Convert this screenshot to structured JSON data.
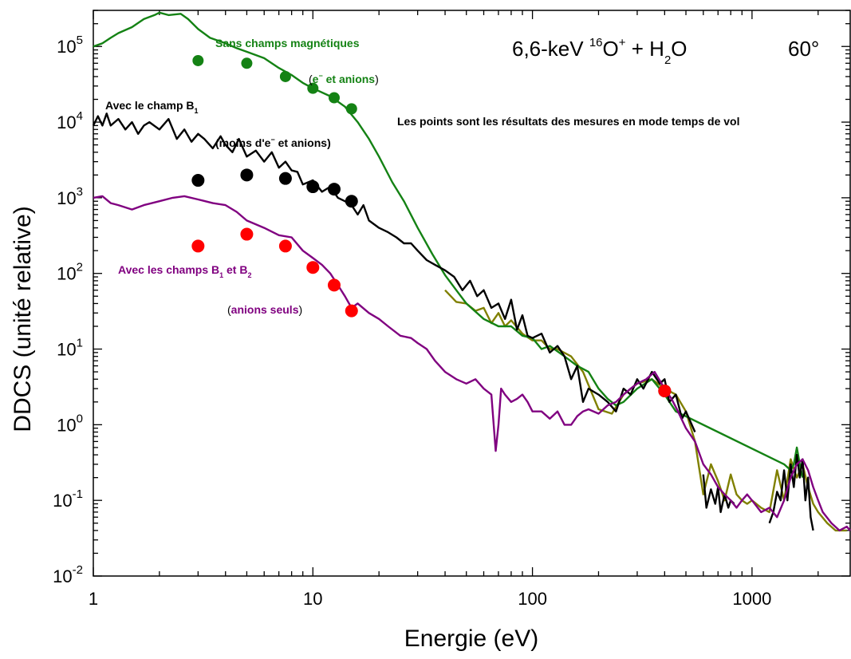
{
  "chart_data": {
    "type": "line",
    "xlabel": "Energie (eV)",
    "ylabel": "DDCS (unité relative)",
    "xscale": "log",
    "yscale": "log",
    "xlim": [
      1,
      2800
    ],
    "ylim": [
      0.01,
      300000
    ],
    "x_ticks": [
      {
        "value": 1,
        "label": "1"
      },
      {
        "value": 10,
        "label": "10"
      },
      {
        "value": 100,
        "label": "100"
      },
      {
        "value": 1000,
        "label": "1000"
      }
    ],
    "y_ticks": [
      {
        "value": 0.01,
        "base": "10",
        "exp": "-2"
      },
      {
        "value": 0.1,
        "base": "10",
        "exp": "-1"
      },
      {
        "value": 1,
        "base": "10",
        "exp": "0"
      },
      {
        "value": 10,
        "base": "10",
        "exp": "1"
      },
      {
        "value": 100,
        "base": "10",
        "exp": "2"
      },
      {
        "value": 1000,
        "base": "10",
        "exp": "3"
      },
      {
        "value": 10000,
        "base": "10",
        "exp": "4"
      },
      {
        "value": 100000,
        "base": "10",
        "exp": "5"
      }
    ],
    "title": {
      "projectile": "6,6-keV ",
      "mass": "16",
      "ion": "O",
      "charge": "+",
      "target_a": " + H",
      "target_sub": "2",
      "target_b": "O",
      "angle": "60°"
    },
    "series": [
      {
        "color": "#808000",
        "x": [
          40,
          45,
          50,
          55,
          60,
          65,
          70,
          75,
          80,
          90,
          100,
          110,
          120,
          130,
          150,
          170,
          200,
          230,
          260,
          300,
          350,
          400,
          450,
          500,
          550,
          600,
          650,
          700,
          750,
          800,
          850,
          900,
          950,
          1000,
          1100,
          1200,
          1300,
          1400,
          1500,
          1600,
          1700,
          1800,
          1900,
          2000,
          2200,
          2400,
          2700
        ],
        "y": [
          60,
          42,
          40,
          32,
          35,
          22,
          30,
          20,
          24,
          16,
          13,
          13,
          10,
          10,
          8,
          5,
          1.6,
          1.4,
          2.5,
          3.5,
          4,
          3,
          2.5,
          1.5,
          0.6,
          0.12,
          0.3,
          0.18,
          0.1,
          0.22,
          0.12,
          0.1,
          0.09,
          0.1,
          0.08,
          0.07,
          0.25,
          0.1,
          0.35,
          0.2,
          0.3,
          0.15,
          0.09,
          0.07,
          0.05,
          0.04,
          0.04
        ]
      },
      {
        "color": "#148214",
        "x": [
          1,
          1.1,
          1.2,
          1.3,
          1.5,
          1.7,
          1.9,
          2,
          2.2,
          2.5,
          2.7,
          3,
          3.4,
          4,
          4.5,
          5,
          6,
          7,
          8,
          9,
          10,
          12,
          14,
          16,
          18,
          20,
          23,
          26,
          30,
          35,
          40,
          45,
          50,
          60,
          70,
          80,
          90,
          100,
          110,
          120,
          140,
          160,
          180,
          200,
          220,
          240,
          260,
          300,
          350,
          400,
          450,
          1400,
          1500,
          1550,
          1600,
          1650,
          1700
        ],
        "y": [
          100000,
          110000,
          130000,
          150000,
          180000,
          230000,
          260000,
          280000,
          260000,
          270000,
          230000,
          170000,
          130000,
          110000,
          95000,
          85000,
          70000,
          52000,
          42000,
          33000,
          28000,
          22000,
          16000,
          10000,
          6000,
          3500,
          1600,
          900,
          400,
          180,
          95,
          60,
          40,
          25,
          20,
          20,
          15,
          14,
          10,
          11,
          8,
          6,
          5,
          3,
          2.2,
          1.8,
          2,
          3,
          4,
          2.5,
          1.5,
          0.3,
          0.25,
          0.3,
          0.5,
          0.3,
          0.2
        ]
      },
      {
        "color": "#000000",
        "x": [
          1,
          1.05,
          1.1,
          1.15,
          1.2,
          1.3,
          1.4,
          1.5,
          1.6,
          1.7,
          1.8,
          2,
          2.2,
          2.4,
          2.6,
          2.8,
          3,
          3.2,
          3.5,
          3.8,
          4,
          4.3,
          4.6,
          5,
          5.5,
          6,
          6.5,
          7,
          7.5,
          8,
          8.5,
          9,
          10,
          11,
          12,
          13,
          14,
          15,
          16,
          17,
          18,
          20,
          22,
          24,
          26,
          28,
          30,
          33,
          36,
          40,
          44,
          48,
          52,
          56,
          60,
          65,
          70,
          75,
          80,
          85,
          90,
          95,
          100,
          110,
          120,
          130,
          140,
          150,
          160,
          170,
          180,
          200,
          220,
          240,
          260,
          280,
          300,
          320,
          350,
          380,
          400,
          420,
          450,
          480,
          500,
          550
        ],
        "y": [
          9000,
          12000,
          9000,
          13000,
          9000,
          11000,
          8000,
          10000,
          7000,
          9000,
          10000,
          8000,
          11000,
          6000,
          8000,
          5500,
          7000,
          6000,
          4500,
          6500,
          5000,
          4000,
          6000,
          3500,
          4200,
          3000,
          4000,
          2500,
          3000,
          2300,
          2200,
          1500,
          1700,
          1200,
          1400,
          1000,
          900,
          800,
          600,
          800,
          500,
          400,
          350,
          300,
          250,
          250,
          200,
          150,
          130,
          110,
          90,
          60,
          80,
          50,
          60,
          35,
          40,
          25,
          45,
          18,
          28,
          15,
          14,
          16,
          9,
          11,
          8,
          4,
          6,
          2,
          3,
          2.5,
          2,
          1.5,
          3,
          2.5,
          4,
          3,
          5,
          3.5,
          4,
          2,
          2.5,
          1.2,
          1.5,
          0.8
        ]
      },
      {
        "color": "#000000",
        "x": [
          600,
          620,
          650,
          680,
          700,
          720,
          750,
          780,
          800,
          830
        ],
        "y": [
          0.22,
          0.08,
          0.14,
          0.09,
          0.15,
          0.07,
          0.12,
          0.08,
          0.1,
          0.09
        ]
      },
      {
        "color": "#000000",
        "x": [
          1200,
          1250,
          1300,
          1350,
          1400,
          1450,
          1500,
          1550,
          1600,
          1650,
          1700,
          1750,
          1800,
          1850,
          1900
        ],
        "y": [
          0.05,
          0.07,
          0.13,
          0.1,
          0.25,
          0.1,
          0.3,
          0.15,
          0.4,
          0.2,
          0.35,
          0.1,
          0.2,
          0.06,
          0.04
        ]
      },
      {
        "color": "#800080",
        "x": [
          1,
          1.1,
          1.2,
          1.3,
          1.5,
          1.7,
          2,
          2.3,
          2.6,
          3,
          3.5,
          4,
          4.5,
          5,
          6,
          7,
          8,
          9,
          10,
          11,
          12,
          13,
          14,
          15,
          16,
          18,
          20,
          22,
          25,
          28,
          30,
          33,
          36,
          40,
          45,
          50,
          55,
          60,
          65,
          68,
          70,
          72,
          75,
          80,
          85,
          90,
          95,
          100,
          110,
          120,
          130,
          140,
          150,
          160,
          170,
          180,
          200,
          220,
          240,
          260,
          280,
          300,
          330,
          360,
          400,
          430,
          460,
          500,
          550,
          600,
          650,
          700,
          750,
          800,
          850,
          900,
          950,
          1000,
          1100,
          1200,
          1300,
          1400,
          1500,
          1600,
          1700,
          1800,
          1900,
          2000,
          2100,
          2300,
          2500,
          2700,
          2800
        ],
        "y": [
          1000,
          1050,
          850,
          800,
          700,
          800,
          900,
          1000,
          1050,
          950,
          850,
          800,
          650,
          500,
          400,
          320,
          300,
          200,
          160,
          130,
          100,
          70,
          50,
          35,
          40,
          30,
          25,
          20,
          15,
          14,
          12,
          10,
          7,
          5,
          4,
          3.5,
          4,
          3,
          2.5,
          0.45,
          1,
          3,
          2.5,
          2,
          2.2,
          2.5,
          2,
          1.5,
          1.5,
          1.2,
          1.5,
          1,
          1,
          1.3,
          1.5,
          1.6,
          1.4,
          1.8,
          2,
          2.5,
          3,
          3.5,
          4,
          5,
          3,
          2.2,
          1.5,
          0.9,
          0.6,
          0.3,
          0.22,
          0.15,
          0.12,
          0.1,
          0.08,
          0.1,
          0.12,
          0.1,
          0.07,
          0.08,
          0.06,
          0.1,
          0.2,
          0.3,
          0.35,
          0.25,
          0.15,
          0.1,
          0.07,
          0.05,
          0.04,
          0.045,
          0.04
        ]
      },
      {
        "color": "#148214",
        "marker": "circle",
        "x": [
          3,
          5,
          7.5,
          10,
          12.5,
          15
        ],
        "y": [
          65000,
          60000,
          40000,
          28000,
          21000,
          15000
        ]
      },
      {
        "color": "#000000",
        "marker": "circle",
        "x": [
          3,
          5,
          7.5,
          10,
          12.5,
          15,
          400
        ],
        "y": [
          1700,
          2000,
          1800,
          1400,
          1300,
          900,
          2.8
        ]
      },
      {
        "color": "#ff0000",
        "marker": "circle",
        "x": [
          3,
          5,
          7.5,
          10,
          12.5,
          15,
          400
        ],
        "y": [
          230,
          330,
          230,
          120,
          70,
          32,
          2.8
        ]
      }
    ],
    "annotations": [
      {
        "text": "Sans champs magnétiques",
        "color": "#148214"
      },
      {
        "text_open": "(",
        "e_text": "e",
        "e_sup": "−",
        "text_mid": " et anions",
        "text_close": ")",
        "color": "#148214"
      },
      {
        "text": "Avec le champ B",
        "sub": "1",
        "color": "#000000"
      },
      {
        "text_a": "(moins d'e",
        "sup": "−",
        "text_b": " et anions)",
        "color": "#000000"
      },
      {
        "text": "Les points sont les résultats des mesures en mode temps de vol",
        "color": "#000000"
      },
      {
        "text_a": "Avec les champs B",
        "sub1": "1",
        "text_b": " et B",
        "sub2": "2",
        "color": "#800080"
      },
      {
        "text_open": "(",
        "text": "anions seuls",
        "text_close": ")",
        "color": "#800080",
        "close_color": "#000000"
      }
    ]
  }
}
